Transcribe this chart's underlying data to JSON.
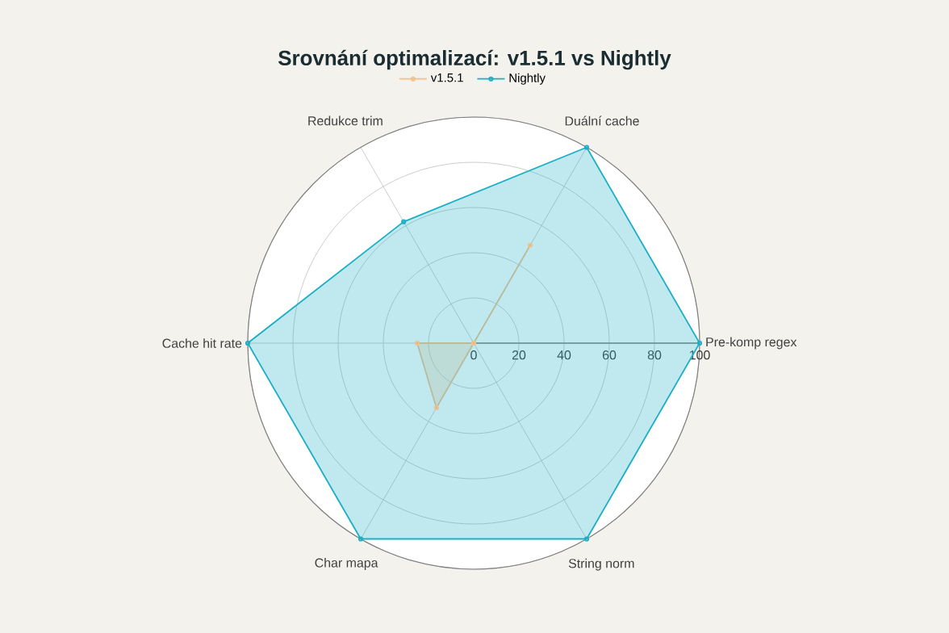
{
  "chart_data": {
    "type": "radar",
    "title": "Srovnání optimalizací: v1.5.1 vs Nightly",
    "categories": [
      "Duální cache",
      "Pre-komp regex",
      "String norm",
      "Char mapa",
      "Cache hit rate",
      "Redukce trim"
    ],
    "series": [
      {
        "name": "v1.5.1",
        "color": "#f5bf8c",
        "values": [
          50,
          0,
          0,
          33,
          25,
          0
        ]
      },
      {
        "name": "Nightly",
        "color": "#1aafc6",
        "values": [
          100,
          100,
          100,
          100,
          100,
          62
        ]
      }
    ],
    "ylim": [
      0,
      100
    ],
    "yticks": [
      0,
      20,
      40,
      60,
      80,
      100
    ],
    "grid": true,
    "legend": "top",
    "marker": "circle",
    "line_style": "solid"
  }
}
